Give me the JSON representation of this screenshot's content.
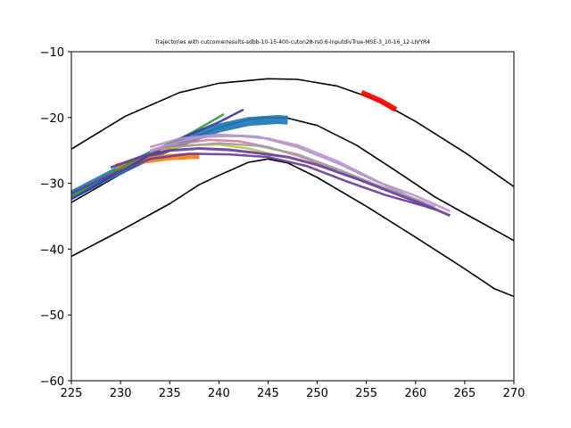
{
  "chart_data": {
    "type": "line",
    "title": "Trajectories with cutcornerresults-sdbb-10-15-400-cuton28-rs0.6-inputdivTrue-MSE-3_10-16_12-LIVYR4",
    "xlabel": "",
    "ylabel": "",
    "xlim": [
      225,
      270
    ],
    "ylim": [
      -60,
      -10
    ],
    "x_ticks": [
      225,
      230,
      235,
      240,
      245,
      250,
      255,
      260,
      265,
      270
    ],
    "y_ticks": [
      -10,
      -20,
      -30,
      -40,
      -50,
      -60
    ],
    "x_tick_labels": [
      "225",
      "230",
      "235",
      "240",
      "245",
      "250",
      "255",
      "260",
      "265",
      "270"
    ],
    "y_tick_labels": [
      "−10",
      "−20",
      "−30",
      "−40",
      "−50",
      "−60"
    ],
    "grid": false,
    "series": [
      {
        "color": "#000000",
        "width": 1.6,
        "points": [
          [
            225,
            -24.8
          ],
          [
            230.5,
            -19.8
          ],
          [
            236,
            -16.2
          ],
          [
            240,
            -14.8
          ],
          [
            245,
            -14.1
          ],
          [
            248,
            -14.2
          ],
          [
            252,
            -15.2
          ],
          [
            256,
            -17.3
          ],
          [
            260,
            -20.6
          ],
          [
            265,
            -25.3
          ],
          [
            270,
            -30.5
          ]
        ]
      },
      {
        "color": "#000000",
        "width": 1.6,
        "points": [
          [
            225,
            -32.9
          ],
          [
            230,
            -28.6
          ],
          [
            235,
            -24.5
          ],
          [
            240,
            -21.5
          ],
          [
            243,
            -20.3
          ],
          [
            245,
            -20.0
          ],
          [
            247,
            -20.1
          ],
          [
            250,
            -21.2
          ],
          [
            254,
            -24.2
          ],
          [
            258,
            -28.1
          ],
          [
            262,
            -32.1
          ],
          [
            266,
            -35.4
          ],
          [
            270,
            -38.7
          ]
        ]
      },
      {
        "color": "#000000",
        "width": 1.6,
        "points": [
          [
            225,
            -41.1
          ],
          [
            230,
            -37.2
          ],
          [
            235,
            -33.1
          ],
          [
            238,
            -30.2
          ],
          [
            240,
            -28.8
          ],
          [
            243,
            -26.8
          ],
          [
            245,
            -26.3
          ],
          [
            247,
            -26.9
          ],
          [
            250,
            -29.1
          ],
          [
            255,
            -33.5
          ],
          [
            260,
            -38.2
          ],
          [
            265,
            -43.0
          ],
          [
            268,
            -46.0
          ],
          [
            270,
            -47.2
          ]
        ]
      },
      {
        "color": "#1f77b4",
        "width": 10,
        "points": [
          [
            225,
            -31.8
          ],
          [
            229,
            -28.7
          ],
          [
            233,
            -25.8
          ],
          [
            237,
            -23.2
          ],
          [
            240,
            -21.6
          ],
          [
            243,
            -20.6
          ],
          [
            246,
            -20.3
          ],
          [
            247,
            -20.4
          ]
        ]
      },
      {
        "color": "#ff7f0e",
        "width": 7,
        "points": [
          [
            229.5,
            -27.5
          ],
          [
            232,
            -26.6
          ],
          [
            235,
            -26.0
          ],
          [
            238,
            -25.8
          ]
        ]
      },
      {
        "color": "#ff0000",
        "width": 6,
        "points": [
          [
            254.5,
            -16.2
          ],
          [
            256.5,
            -17.5
          ],
          [
            258,
            -18.8
          ]
        ]
      },
      {
        "color": "#2ca02c",
        "width": 2.5,
        "points": [
          [
            225,
            -32.0
          ],
          [
            229,
            -28.5
          ],
          [
            233,
            -25.3
          ],
          [
            237,
            -22.5
          ],
          [
            240.5,
            -19.5
          ]
        ]
      },
      {
        "color": "#3a3aa8",
        "width": 2.5,
        "points": [
          [
            225,
            -32.4
          ],
          [
            229,
            -29.0
          ],
          [
            233,
            -25.7
          ],
          [
            237,
            -22.6
          ],
          [
            240,
            -20.7
          ],
          [
            242.5,
            -18.8
          ]
        ]
      },
      {
        "color": "#b5c94a",
        "width": 2.5,
        "points": [
          [
            234,
            -25.0
          ],
          [
            237,
            -24.2
          ],
          [
            240,
            -24.1
          ],
          [
            243,
            -24.7
          ],
          [
            246,
            -25.8
          ]
        ]
      },
      {
        "color": "#d6809c",
        "width": 2.5,
        "points": [
          [
            233,
            -25.2
          ],
          [
            236,
            -24.0
          ],
          [
            239,
            -23.4
          ],
          [
            242,
            -23.6
          ],
          [
            245,
            -24.5
          ],
          [
            248,
            -25.8
          ],
          [
            252,
            -28.0
          ]
        ]
      },
      {
        "color": "#b0a0c8",
        "width": 2.5,
        "points": [
          [
            233,
            -25.0
          ],
          [
            236,
            -23.6
          ],
          [
            239,
            -22.9
          ],
          [
            242,
            -22.8
          ],
          [
            245,
            -23.2
          ],
          [
            248,
            -24.2
          ],
          [
            252,
            -26.6
          ],
          [
            256,
            -29.6
          ],
          [
            259,
            -31.8
          ],
          [
            262,
            -33.6
          ]
        ]
      },
      {
        "color": "#bf8fd0",
        "width": 2.5,
        "points": [
          [
            233,
            -24.5
          ],
          [
            236,
            -23.2
          ],
          [
            240,
            -22.6
          ],
          [
            244,
            -22.9
          ],
          [
            248,
            -24.5
          ],
          [
            252,
            -26.9
          ],
          [
            256,
            -29.7
          ],
          [
            260,
            -31.9
          ],
          [
            263.5,
            -34.2
          ]
        ]
      },
      {
        "color": "#9f9f9f",
        "width": 2.5,
        "points": [
          [
            236,
            -24.4
          ],
          [
            240,
            -23.9
          ],
          [
            244,
            -24.3
          ],
          [
            248,
            -25.6
          ],
          [
            252,
            -27.8
          ],
          [
            256,
            -30.2
          ],
          [
            260,
            -32.4
          ],
          [
            261,
            -33.0
          ]
        ]
      },
      {
        "color": "#6a3d9a",
        "width": 3,
        "points": [
          [
            229,
            -27.6
          ],
          [
            232,
            -26.0
          ],
          [
            235,
            -25.0
          ],
          [
            238,
            -24.7
          ],
          [
            241,
            -24.9
          ],
          [
            244,
            -25.4
          ],
          [
            247,
            -26.0
          ],
          [
            250,
            -27.2
          ],
          [
            254,
            -29.3
          ],
          [
            258,
            -31.6
          ],
          [
            261.5,
            -33.6
          ],
          [
            263.5,
            -34.9
          ]
        ]
      },
      {
        "color": "#6a3d9a",
        "width": 2.5,
        "points": [
          [
            225,
            -31.5
          ],
          [
            229,
            -28.7
          ],
          [
            233,
            -26.3
          ],
          [
            237,
            -25.5
          ],
          [
            241,
            -25.6
          ],
          [
            245,
            -26.0
          ],
          [
            249,
            -27.4
          ],
          [
            253,
            -29.7
          ],
          [
            257,
            -31.8
          ],
          [
            261,
            -33.5
          ],
          [
            262,
            -34.0
          ]
        ]
      }
    ]
  }
}
